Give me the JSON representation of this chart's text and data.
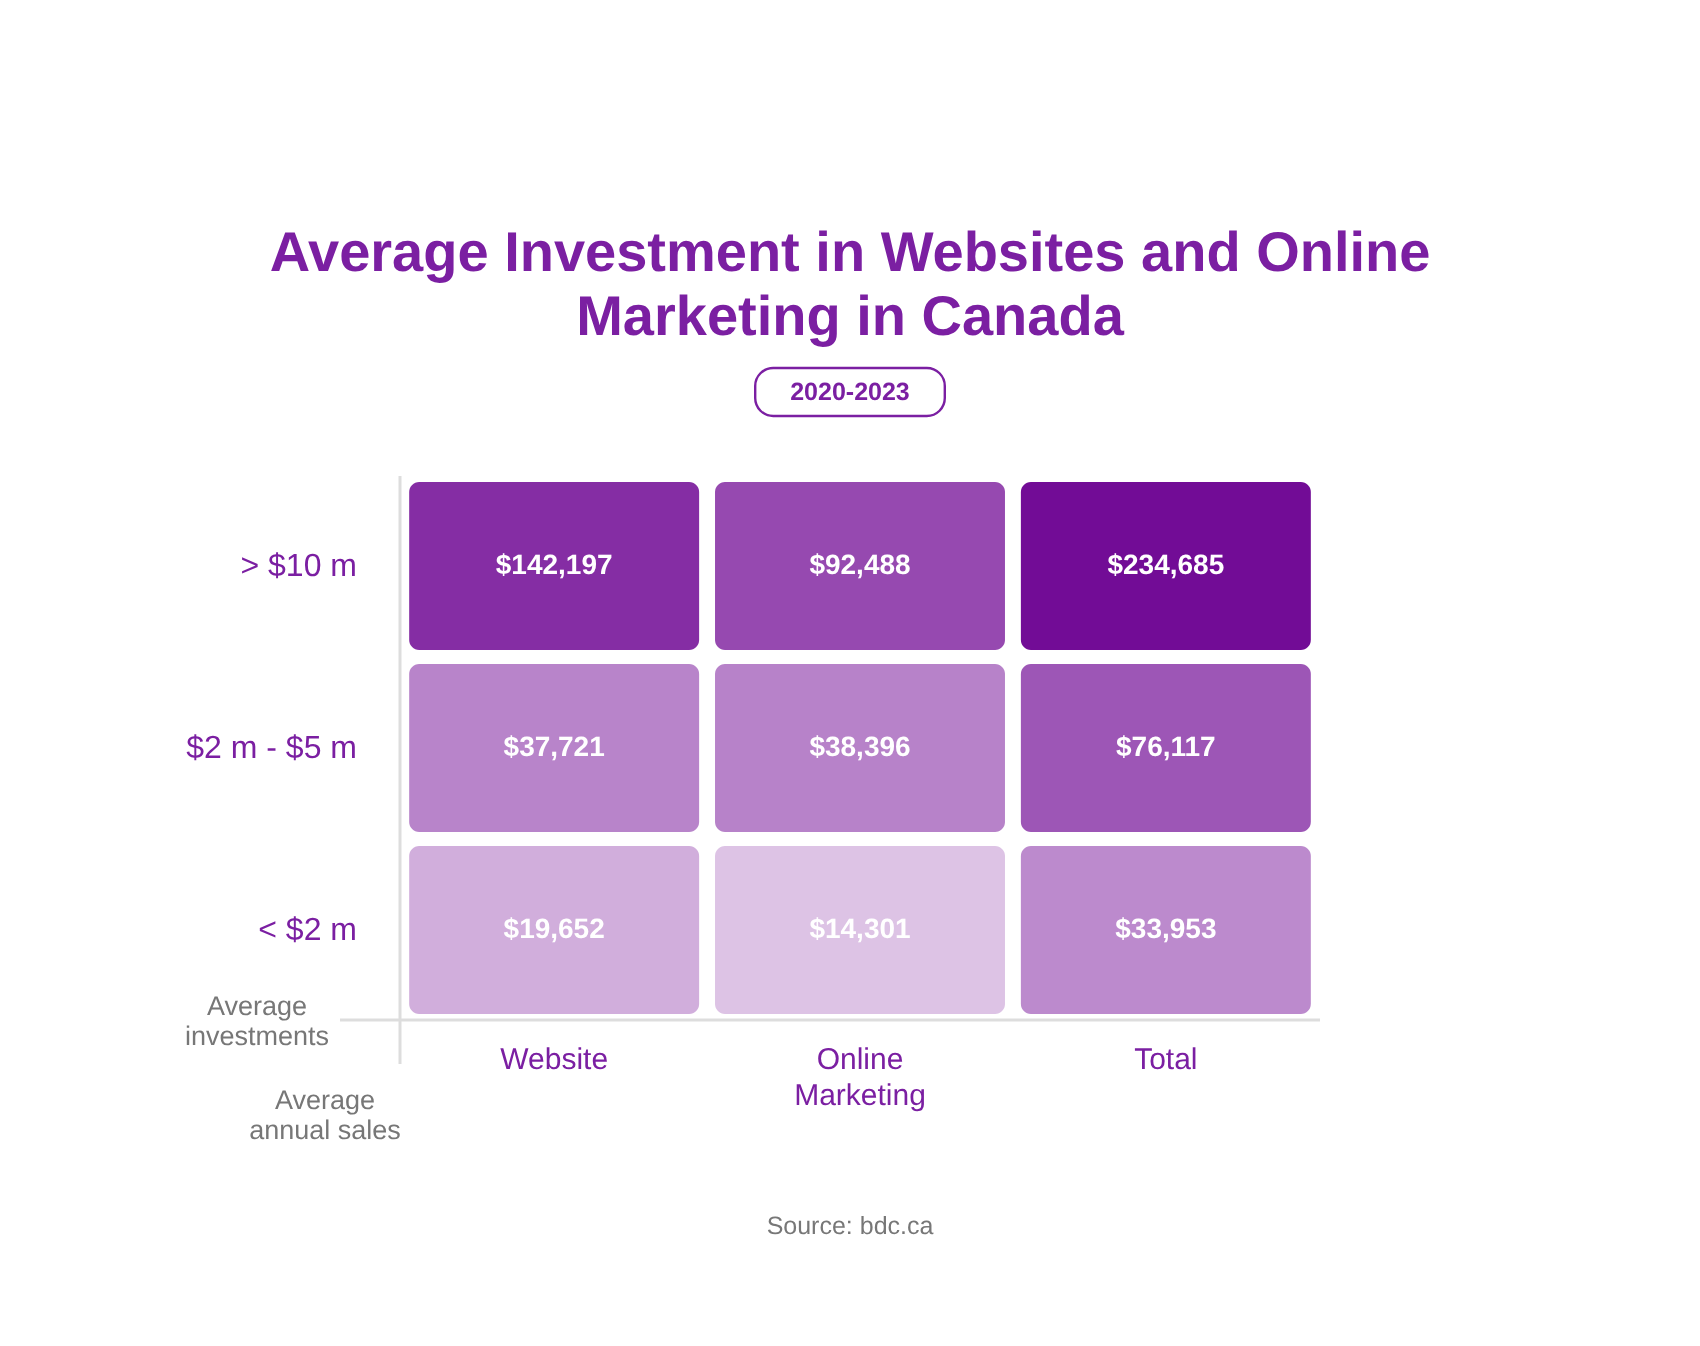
{
  "chart_data": {
    "type": "heatmap",
    "title": "Average Investment in Websites and Online Marketing in Canada",
    "subtitle": "2020-2023",
    "xlabel": "Average investments",
    "ylabel": "Average annual sales",
    "categories": [
      "Website",
      "Online Marketing",
      "Total"
    ],
    "y_categories": [
      "> $10 m",
      "$2 m - $5 m",
      "< $2 m"
    ],
    "cells": [
      [
        142197,
        92488,
        234685
      ],
      [
        37721,
        38396,
        76117
      ],
      [
        19652,
        14301,
        33953
      ]
    ],
    "cell_labels": [
      [
        "$142,197",
        "$92,488",
        "$234,685"
      ],
      [
        "$37,721",
        "$38,396",
        "$76,117"
      ],
      [
        "$19,652",
        "$14,301",
        "$33,953"
      ]
    ],
    "annotations": [
      "Source: bdc.ca"
    ]
  }
}
